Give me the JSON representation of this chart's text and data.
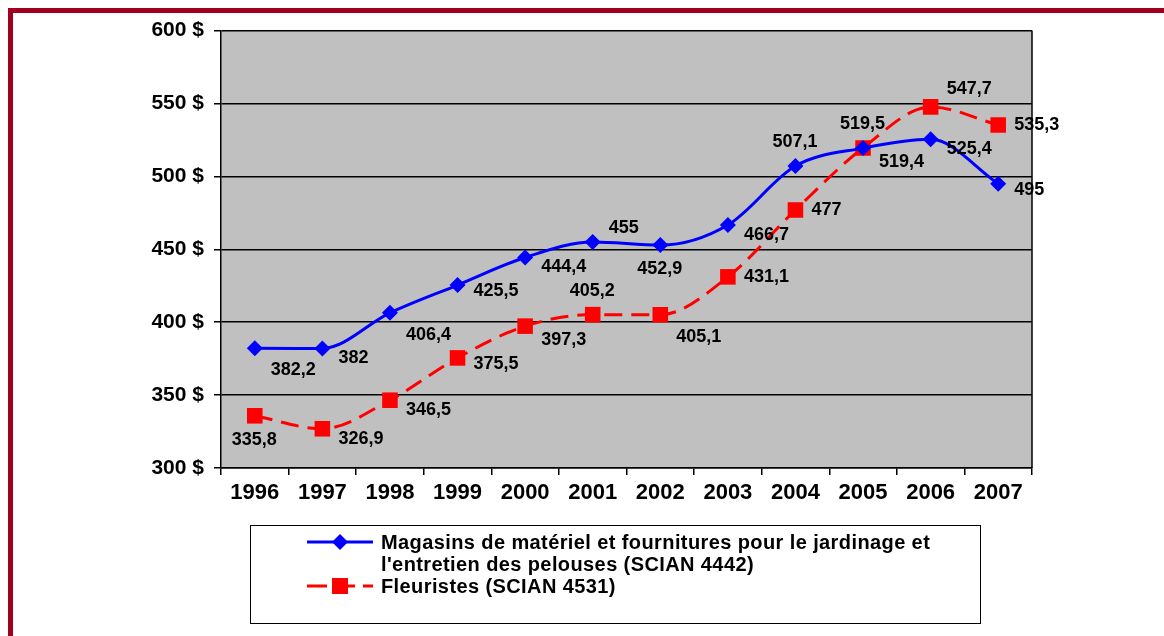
{
  "chart_data": {
    "type": "line",
    "categories": [
      "1996",
      "1997",
      "1998",
      "1999",
      "2000",
      "2001",
      "2002",
      "2003",
      "2004",
      "2005",
      "2006",
      "2007"
    ],
    "series": [
      {
        "name": "Magasins de matériel et fournitures pour le jardinage et l'entretien des pelouses (SCIAN 4442)",
        "color": "#0000ff",
        "marker": "diamond",
        "line_style": "solid",
        "values": [
          382.2,
          382,
          406.4,
          425.5,
          444.4,
          455,
          452.9,
          466.7,
          507.1,
          519.4,
          525.4,
          495
        ],
        "value_labels": [
          "382,2",
          "382",
          "406,4",
          "425,5",
          "444,4",
          "455",
          "452,9",
          "466,7",
          "507,1",
          "519,4",
          "525,4",
          "495"
        ]
      },
      {
        "name": "Fleuristes (SCIAN 4531)",
        "color": "#ff0000",
        "marker": "square",
        "line_style": "dashed",
        "values": [
          335.8,
          326.9,
          346.5,
          375.5,
          397.3,
          405.2,
          405.1,
          431.1,
          477,
          519.5,
          547.7,
          535.3
        ],
        "value_labels": [
          "335,8",
          "326,9",
          "346,5",
          "375,5",
          "397,3",
          "405,2",
          "405,1",
          "431,1",
          "477",
          "519,5",
          "547,7",
          "535,3"
        ]
      }
    ],
    "ylim": [
      300,
      600
    ],
    "yticks": [
      {
        "value": 300,
        "label": "300 $"
      },
      {
        "value": 350,
        "label": "350 $"
      },
      {
        "value": 400,
        "label": "400 $"
      },
      {
        "value": 450,
        "label": "450 $"
      },
      {
        "value": 500,
        "label": "500 $"
      },
      {
        "value": 550,
        "label": "550 $"
      },
      {
        "value": 600,
        "label": "600 $"
      }
    ],
    "grid": "y",
    "legend": "bottom"
  }
}
